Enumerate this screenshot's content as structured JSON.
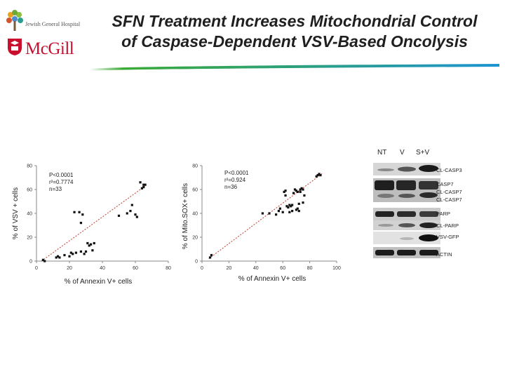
{
  "header": {
    "title_line1": "SFN Treatment Increases Mitochondrial Control",
    "title_line2": "of Caspase-Dependent VSV-Based Oncolysis",
    "jgh_name": "Jewish General Hospital",
    "mcgill_name": "McGill"
  },
  "colors": {
    "title_bar_gradient": [
      "#3aaa35",
      "#1c94d2"
    ],
    "mcgill_red": "#c8102e",
    "regression_line": "#c0392b"
  },
  "chart_data": [
    {
      "type": "scatter",
      "ylabel": "% of VSV + cells",
      "xlabel": "% of Annexin V+ cells",
      "xlim": [
        0,
        80
      ],
      "ylim": [
        0,
        80
      ],
      "xticks": [
        0,
        20,
        40,
        60,
        80
      ],
      "yticks": [
        0,
        20,
        40,
        60,
        80
      ],
      "annotation": [
        "P<0.0001",
        "r²=0.7774",
        "n=33"
      ],
      "fit_line": [
        [
          3,
          0
        ],
        [
          66,
          63
        ]
      ],
      "points": [
        [
          4,
          1
        ],
        [
          5,
          0
        ],
        [
          12,
          3
        ],
        [
          13,
          4
        ],
        [
          14,
          3
        ],
        [
          17,
          5
        ],
        [
          20,
          4
        ],
        [
          21,
          7
        ],
        [
          22,
          6
        ],
        [
          23,
          41
        ],
        [
          24,
          7
        ],
        [
          26,
          41
        ],
        [
          27,
          8
        ],
        [
          27,
          32
        ],
        [
          28,
          39
        ],
        [
          29,
          6
        ],
        [
          30,
          8
        ],
        [
          31,
          15
        ],
        [
          32,
          13
        ],
        [
          33,
          14
        ],
        [
          34,
          9
        ],
        [
          35,
          15
        ],
        [
          50,
          38
        ],
        [
          55,
          40
        ],
        [
          57,
          42
        ],
        [
          58,
          47
        ],
        [
          60,
          39
        ],
        [
          61,
          37
        ],
        [
          63,
          66
        ],
        [
          64,
          61
        ],
        [
          65,
          62
        ],
        [
          66,
          64
        ],
        [
          65,
          64
        ]
      ]
    },
    {
      "type": "scatter",
      "ylabel": "% of Mito.SOX+ cells",
      "xlabel": "% of Annexin V+ cells",
      "xlim": [
        0,
        100
      ],
      "ylim": [
        0,
        80
      ],
      "xticks": [
        0,
        20,
        40,
        60,
        80,
        100
      ],
      "yticks": [
        0,
        20,
        40,
        60,
        80
      ],
      "annotation": [
        "P<0.0001",
        "r²=0.924",
        "n=36"
      ],
      "fit_line": [
        [
          5,
          2
        ],
        [
          90,
          74
        ]
      ],
      "points": [
        [
          6,
          3
        ],
        [
          7,
          5
        ],
        [
          45,
          40
        ],
        [
          50,
          40
        ],
        [
          55,
          39
        ],
        [
          57,
          42
        ],
        [
          58,
          44
        ],
        [
          60,
          41
        ],
        [
          61,
          58
        ],
        [
          62,
          59
        ],
        [
          63,
          46
        ],
        [
          64,
          45
        ],
        [
          65,
          41
        ],
        [
          66,
          46
        ],
        [
          67,
          42
        ],
        [
          68,
          57
        ],
        [
          69,
          60
        ],
        [
          70,
          59
        ],
        [
          71,
          58
        ],
        [
          72,
          48
        ],
        [
          73,
          58
        ],
        [
          74,
          61
        ],
        [
          75,
          60
        ],
        [
          76,
          55
        ],
        [
          72,
          42
        ],
        [
          71,
          44
        ],
        [
          75,
          49
        ],
        [
          85,
          71
        ],
        [
          86,
          72
        ],
        [
          87,
          73
        ],
        [
          88,
          72
        ],
        [
          70,
          43
        ],
        [
          67,
          47
        ],
        [
          65,
          47
        ],
        [
          62,
          55
        ],
        [
          73,
          60
        ]
      ]
    }
  ],
  "blot": {
    "lanes": [
      "NT",
      "V",
      "S+V"
    ],
    "bands": [
      "CL-CASP3",
      "CASP7",
      "CL-CASP7",
      "CL-CASP7",
      "PARP",
      "CL-PARP",
      "VSV-GFP",
      "ACTIN"
    ]
  }
}
